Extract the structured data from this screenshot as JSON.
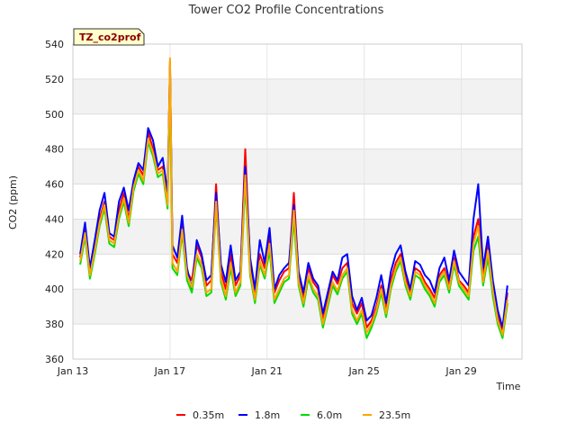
{
  "chart_data": {
    "type": "line",
    "title": "Tower CO2 Profile Concentrations",
    "badge": "TZ_co2prof",
    "xlabel": "Time",
    "ylabel": "CO2 (ppm)",
    "xlim": [
      13.0,
      31.5
    ],
    "ylim": [
      360,
      540
    ],
    "x_ticks": [
      {
        "value": 13,
        "label": "Jan 13"
      },
      {
        "value": 17,
        "label": "Jan 17"
      },
      {
        "value": 21,
        "label": "Jan 21"
      },
      {
        "value": 25,
        "label": "Jan 25"
      },
      {
        "value": 29,
        "label": "Jan 29"
      }
    ],
    "y_ticks": [
      360,
      380,
      400,
      420,
      440,
      460,
      480,
      500,
      520,
      540
    ],
    "grid": true,
    "legend_position": "bottom",
    "x": [
      13.3,
      13.5,
      13.7,
      13.9,
      14.1,
      14.3,
      14.5,
      14.7,
      14.9,
      15.1,
      15.3,
      15.5,
      15.7,
      15.9,
      16.1,
      16.3,
      16.5,
      16.7,
      16.9,
      17.0,
      17.1,
      17.3,
      17.5,
      17.7,
      17.9,
      18.1,
      18.3,
      18.5,
      18.7,
      18.9,
      19.1,
      19.3,
      19.5,
      19.7,
      19.9,
      20.1,
      20.3,
      20.5,
      20.7,
      20.9,
      21.1,
      21.3,
      21.5,
      21.7,
      21.9,
      22.1,
      22.3,
      22.5,
      22.7,
      22.9,
      23.1,
      23.3,
      23.5,
      23.7,
      23.9,
      24.1,
      24.3,
      24.5,
      24.7,
      24.9,
      25.1,
      25.3,
      25.5,
      25.7,
      25.9,
      26.1,
      26.3,
      26.5,
      26.7,
      26.9,
      27.1,
      27.3,
      27.5,
      27.7,
      27.9,
      28.1,
      28.3,
      28.5,
      28.7,
      28.9,
      29.1,
      29.3,
      29.5,
      29.7,
      29.9,
      30.1,
      30.3,
      30.5,
      30.7,
      30.9
    ],
    "series": [
      {
        "name": "0.35m",
        "color": "#ff0000",
        "values": [
          418,
          435,
          410,
          425,
          440,
          450,
          430,
          428,
          445,
          455,
          440,
          460,
          470,
          465,
          490,
          480,
          468,
          470,
          450,
          530,
          420,
          415,
          440,
          410,
          405,
          425,
          418,
          402,
          405,
          460,
          410,
          400,
          420,
          402,
          408,
          480,
          415,
          398,
          420,
          412,
          430,
          398,
          405,
          410,
          412,
          455,
          408,
          395,
          412,
          404,
          400,
          382,
          395,
          408,
          403,
          412,
          415,
          392,
          386,
          392,
          378,
          382,
          390,
          402,
          388,
          405,
          415,
          420,
          406,
          398,
          412,
          410,
          404,
          400,
          395,
          408,
          412,
          402,
          418,
          405,
          402,
          398,
          430,
          440,
          408,
          425,
          402,
          385,
          375,
          398
        ]
      },
      {
        "name": "1.8m",
        "color": "#0000ff",
        "values": [
          420,
          438,
          412,
          428,
          445,
          455,
          432,
          430,
          450,
          458,
          445,
          462,
          472,
          468,
          492,
          485,
          470,
          475,
          455,
          528,
          425,
          418,
          442,
          412,
          400,
          428,
          420,
          405,
          408,
          455,
          414,
          404,
          425,
          405,
          410,
          470,
          418,
          400,
          428,
          415,
          435,
          400,
          408,
          412,
          415,
          448,
          410,
          398,
          415,
          406,
          402,
          386,
          398,
          410,
          405,
          418,
          420,
          396,
          388,
          395,
          382,
          385,
          395,
          408,
          392,
          410,
          420,
          425,
          410,
          400,
          416,
          414,
          408,
          405,
          398,
          412,
          418,
          405,
          422,
          410,
          406,
          402,
          440,
          460,
          412,
          430,
          405,
          388,
          378,
          402
        ]
      },
      {
        "name": "6.0m",
        "color": "#00dd00",
        "values": [
          414,
          430,
          406,
          420,
          436,
          446,
          426,
          424,
          440,
          450,
          436,
          456,
          466,
          460,
          484,
          476,
          464,
          466,
          446,
          518,
          412,
          408,
          432,
          405,
          398,
          418,
          412,
          396,
          398,
          448,
          404,
          394,
          412,
          396,
          402,
          460,
          408,
          392,
          414,
          406,
          422,
          392,
          398,
          404,
          406,
          440,
          402,
          390,
          406,
          398,
          394,
          378,
          390,
          402,
          397,
          406,
          410,
          386,
          380,
          386,
          372,
          378,
          386,
          398,
          384,
          400,
          410,
          416,
          402,
          394,
          408,
          406,
          400,
          396,
          390,
          404,
          408,
          398,
          414,
          402,
          398,
          394,
          422,
          430,
          402,
          418,
          396,
          380,
          372,
          392
        ]
      },
      {
        "name": "23.5m",
        "color": "#ffa500",
        "values": [
          416,
          432,
          408,
          422,
          438,
          448,
          428,
          426,
          442,
          452,
          438,
          458,
          468,
          462,
          486,
          478,
          466,
          468,
          448,
          532,
          415,
          410,
          434,
          408,
          401,
          420,
          414,
          398,
          400,
          450,
          406,
          396,
          415,
          398,
          404,
          465,
          410,
          394,
          416,
          408,
          426,
          394,
          400,
          406,
          408,
          445,
          404,
          392,
          408,
          400,
          396,
          380,
          392,
          404,
          399,
          408,
          412,
          388,
          382,
          388,
          375,
          380,
          388,
          400,
          386,
          402,
          412,
          418,
          404,
          396,
          410,
          408,
          402,
          398,
          392,
          406,
          410,
          400,
          416,
          404,
          400,
          396,
          426,
          436,
          404,
          422,
          399,
          382,
          374,
          394
        ]
      }
    ]
  }
}
